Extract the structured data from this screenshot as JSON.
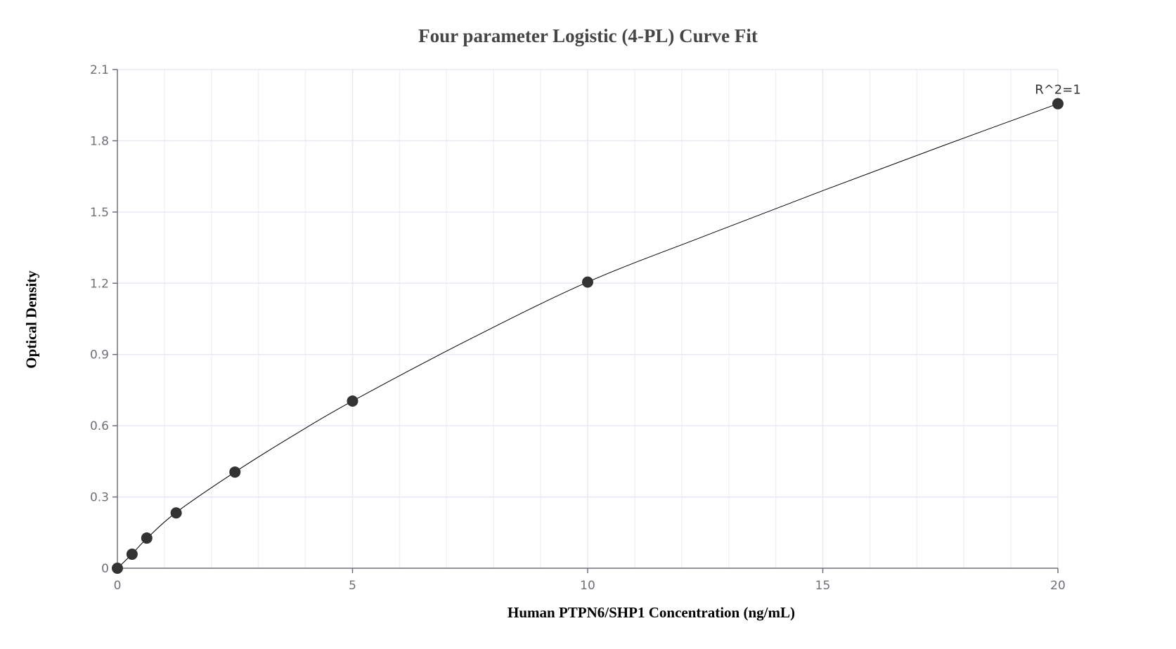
{
  "chart": {
    "title": "Four parameter Logistic (4-PL) Curve Fit",
    "xlabel": "Human PTPN6/SHP1 Concentration (ng/mL)",
    "ylabel": "Optical Density",
    "annotation": "R^2=1"
  },
  "chart_data": {
    "type": "scatter",
    "title": "Four parameter Logistic (4-PL) Curve Fit",
    "xlabel": "Human PTPN6/SHP1 Concentration (ng/mL)",
    "ylabel": "Optical Density",
    "xlim": [
      0,
      20
    ],
    "ylim": [
      0,
      2.1
    ],
    "x_ticks": [
      0,
      5,
      10,
      15,
      20
    ],
    "y_ticks": [
      0,
      0.3,
      0.6,
      0.9,
      1.2,
      1.5,
      1.8,
      2.1
    ],
    "x_tick_labels": [
      "0",
      "5",
      "10",
      "15",
      "20"
    ],
    "y_tick_labels": [
      "0",
      "0.3",
      "0.6",
      "0.9",
      "1.2",
      "1.5",
      "1.8",
      "2.1"
    ],
    "grid": true,
    "legend": null,
    "annotations": [
      {
        "text": "R^2=1",
        "x": 20,
        "y": 1.956
      }
    ],
    "series": [
      {
        "name": "Standards",
        "type": "scatter",
        "marker_color": "#333333",
        "x": [
          0,
          0.3125,
          0.625,
          1.25,
          2.5,
          5,
          10,
          20
        ],
        "y": [
          0.0,
          0.059,
          0.127,
          0.233,
          0.405,
          0.704,
          1.205,
          1.956
        ]
      },
      {
        "name": "4-PL fit",
        "type": "line",
        "line_color": "#000000",
        "x": [
          0,
          0.3125,
          0.625,
          1.25,
          2.5,
          3.75,
          5,
          7.5,
          10,
          12.5,
          15,
          17.5,
          20
        ],
        "y": [
          0.0,
          0.06,
          0.125,
          0.235,
          0.405,
          0.56,
          0.704,
          0.965,
          1.205,
          1.4,
          1.59,
          1.775,
          1.956
        ]
      }
    ]
  },
  "colors": {
    "grid": "#e6e9f2",
    "minor_grid": "#f0f2f8",
    "axis": "#6e7079",
    "marker": "#333333",
    "curve": "#000000"
  }
}
